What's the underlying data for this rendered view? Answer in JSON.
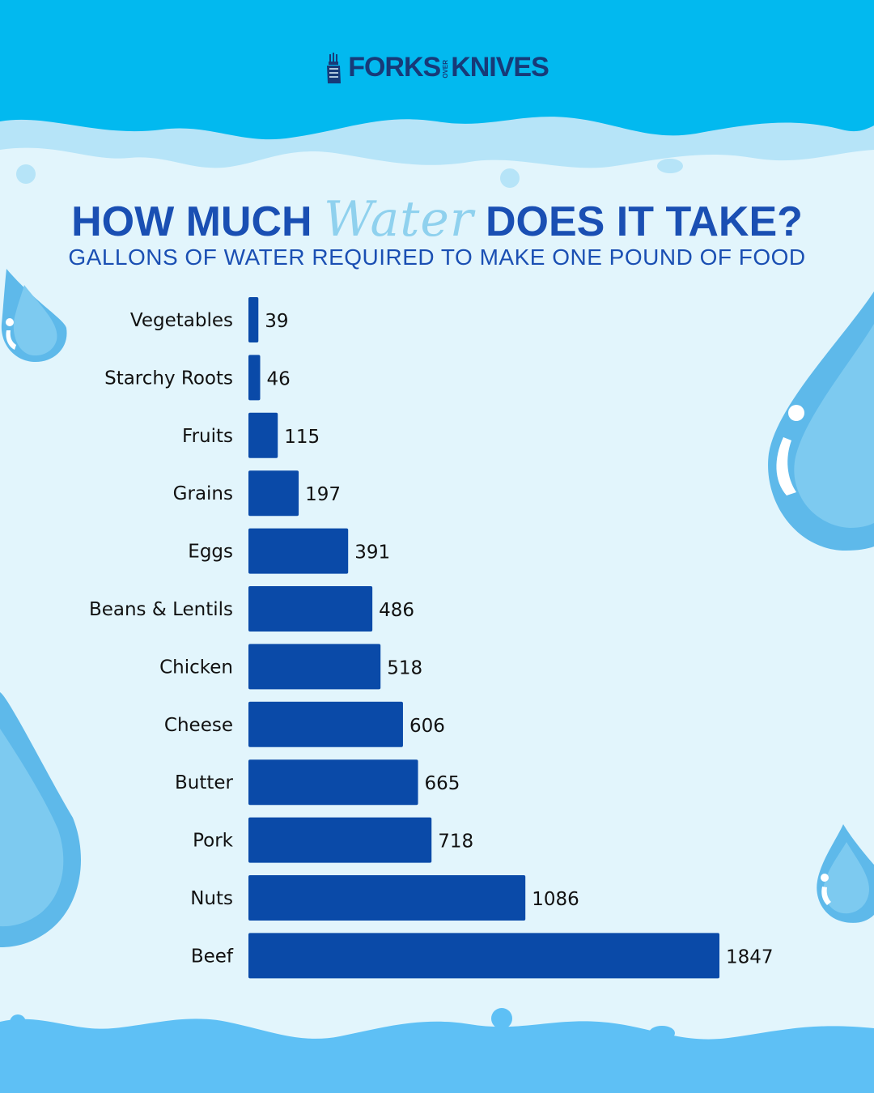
{
  "brand": {
    "logo_left": "FORKS",
    "logo_over": "OVER",
    "logo_right": "KNIVES"
  },
  "headline": {
    "before": "HOW MUCH ",
    "script": "Water",
    "after": " DOES IT TAKE?"
  },
  "subtitle": "GALLONS OF WATER REQUIRED TO MAKE ONE POUND OF FOOD",
  "colors": {
    "bar": "#0a4aa8",
    "title": "#1a4fb3",
    "sky": "#02b9ef",
    "water_light": "#b6e4f8",
    "drop": "#5eb9ea",
    "background": "#e2f5fc"
  },
  "chart_data": {
    "type": "bar",
    "orientation": "horizontal",
    "title": "GALLONS OF WATER REQUIRED TO MAKE ONE POUND OF FOOD",
    "categories": [
      "Vegetables",
      "Starchy Roots",
      "Fruits",
      "Grains",
      "Eggs",
      "Beans & Lentils",
      "Chicken",
      "Cheese",
      "Butter",
      "Pork",
      "Nuts",
      "Beef"
    ],
    "values": [
      39,
      46,
      115,
      197,
      391,
      486,
      518,
      606,
      665,
      718,
      1086,
      1847
    ],
    "value_labels": [
      "39",
      "46",
      "115",
      "197",
      "391",
      "486",
      "518",
      "606",
      "665",
      "718",
      "1086",
      "1847"
    ],
    "xlim": [
      0,
      1847
    ],
    "grid": false,
    "legend": "none"
  }
}
